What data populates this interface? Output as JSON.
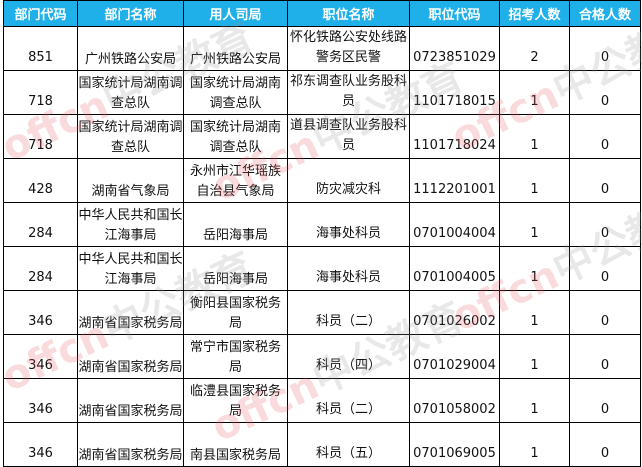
{
  "headers": [
    "部门代码",
    "部门名称",
    "用人司局",
    "职位名称",
    "职位代码",
    "招考人数",
    "合格人数"
  ],
  "rows": [
    [
      "851",
      "广州铁路公安局",
      "广州铁路公安局",
      "怀化铁路公安处线路警务区民警",
      "0723851029",
      "2",
      "0"
    ],
    [
      "718",
      "国家统计局湖南调查总队",
      "国家统计局湖南调查总队",
      "祁东调查队业务股科员",
      "1101718015",
      "1",
      "0"
    ],
    [
      "718",
      "国家统计局湖南调查总队",
      "国家统计局湖南调查总队",
      "道县调查队业务股科员",
      "1101718024",
      "1",
      "0"
    ],
    [
      "428",
      "湖南省气象局",
      "永州市江华瑶族自治县气象局",
      "防灾减灾科",
      "1112201001",
      "1",
      "0"
    ],
    [
      "284",
      "中华人民共和国长江海事局",
      "岳阳海事局",
      "海事处科员",
      "0701004004",
      "1",
      "0"
    ],
    [
      "284",
      "中华人民共和国长江海事局",
      "岳阳海事局",
      "海事处科员",
      "0701004005",
      "1",
      "0"
    ],
    [
      "346",
      "湖南省国家税务局",
      "衡阳县国家税务局",
      "科员（二）",
      "0701026002",
      "1",
      "0"
    ],
    [
      "346",
      "湖南省国家税务局",
      "常宁市国家税务局",
      "科员（四）",
      "0701029004",
      "1",
      "0"
    ],
    [
      "346",
      "湖南省国家税务局",
      "临澧县国家税务局",
      "科员（二）",
      "0701058002",
      "1",
      "0"
    ],
    [
      "346",
      "湖南省国家税务局",
      "南县国家税务局",
      "科员（五）",
      "0701069005",
      "1",
      "0"
    ]
  ],
  "watermark": {
    "brand": "offcn",
    "name": "中公教育"
  },
  "colors": {
    "header_bg": "#1fb0ea",
    "header_text": "#ffffff"
  }
}
